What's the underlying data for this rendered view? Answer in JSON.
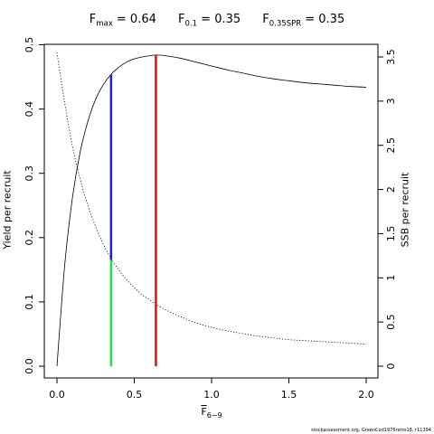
{
  "title": {
    "fmax_symbol": "F",
    "fmax_sub": "max",
    "fmax_value": " = 0.64",
    "f01_symbol": "F",
    "f01_sub": "0.1",
    "f01_value": " = 0.35",
    "fspr_symbol": "F",
    "fspr_sub": "0.35SPR",
    "fspr_value": " = 0.35"
  },
  "credit": "stockassessment.org, GreenCod1976retro18, r11394",
  "chart_data": {
    "type": "line",
    "xlabel_symbol": "F",
    "xlabel_sub": "6−9",
    "ylabel": "Yield per recruit",
    "y2label": "SSB per recruit",
    "xlim": [
      0,
      2.0
    ],
    "ylim": [
      0,
      0.5
    ],
    "y2lim": [
      0,
      3.5
    ],
    "x_ticks": [
      0.0,
      0.5,
      1.0,
      1.5,
      2.0
    ],
    "x_tick_labels": [
      "0.0",
      "0.5",
      "1.0",
      "1.5",
      "2.0"
    ],
    "y_ticks": [
      0.0,
      0.1,
      0.2,
      0.3,
      0.4,
      0.5
    ],
    "y_tick_labels": [
      "0.0",
      "0.1",
      "0.2",
      "0.3",
      "0.4",
      "0.5"
    ],
    "y2_ticks": [
      0,
      0.5,
      1,
      1.5,
      2,
      2.5,
      3,
      3.5
    ],
    "y2_tick_labels": [
      "0",
      "0.5",
      "1",
      "1.5",
      "2",
      "2.5",
      "3",
      "3.5"
    ],
    "grid": false,
    "series": [
      {
        "axis": "left",
        "style": "solid",
        "color": "#000000",
        "x": [
          0,
          0.05,
          0.1,
          0.15,
          0.2,
          0.25,
          0.3,
          0.35,
          0.4,
          0.45,
          0.5,
          0.55,
          0.6,
          0.64,
          0.7,
          0.8,
          0.9,
          1.0,
          1.1,
          1.2,
          1.3,
          1.4,
          1.5,
          1.6,
          1.7,
          1.8,
          1.9,
          2.0
        ],
        "values": [
          0.0,
          0.157,
          0.262,
          0.333,
          0.381,
          0.415,
          0.438,
          0.454,
          0.465,
          0.473,
          0.478,
          0.481,
          0.483,
          0.484,
          0.483,
          0.479,
          0.473,
          0.467,
          0.461,
          0.456,
          0.451,
          0.447,
          0.444,
          0.441,
          0.439,
          0.437,
          0.435,
          0.434
        ]
      },
      {
        "axis": "right",
        "style": "dotted",
        "color": "#000000",
        "x": [
          0,
          0.05,
          0.1,
          0.15,
          0.2,
          0.25,
          0.3,
          0.35,
          0.4,
          0.45,
          0.5,
          0.55,
          0.6,
          0.64,
          0.7,
          0.8,
          0.9,
          1.0,
          1.1,
          1.2,
          1.3,
          1.4,
          1.5,
          1.6,
          1.7,
          1.8,
          1.9,
          2.0
        ],
        "values": [
          3.55,
          2.98,
          2.49,
          2.12,
          1.82,
          1.58,
          1.38,
          1.22,
          1.09,
          0.98,
          0.89,
          0.81,
          0.75,
          0.7,
          0.64,
          0.56,
          0.49,
          0.44,
          0.4,
          0.37,
          0.34,
          0.32,
          0.3,
          0.29,
          0.28,
          0.27,
          0.26,
          0.25
        ]
      }
    ],
    "reference_lines": [
      {
        "x": 0.35,
        "y_from": 0,
        "y_to": 0.165,
        "color": "#22dd44"
      },
      {
        "x": 0.35,
        "y_from": 0.165,
        "y_to": 0.454,
        "color": "#2222cc"
      },
      {
        "x": 0.64,
        "y_from": 0,
        "y_to": 0.484,
        "color": "#dd1111"
      }
    ]
  }
}
